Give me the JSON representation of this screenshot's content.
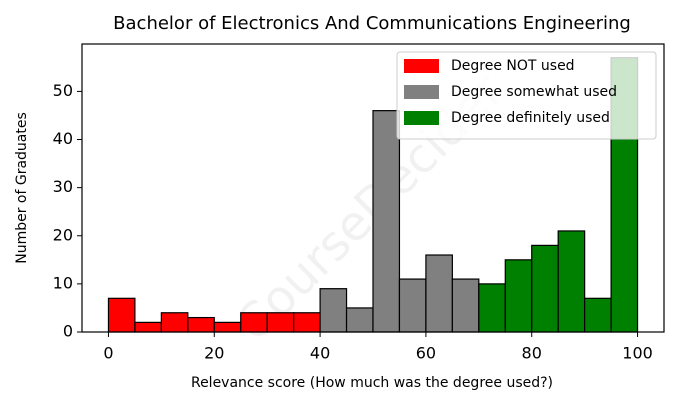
{
  "chart_data": {
    "type": "histogram",
    "title": "Bachelor of Electronics And Communications Engineering",
    "xlabel": "Relevance score (How much was the degree used?)",
    "ylabel": "Number of Graduates",
    "watermark": "CourseDecider",
    "xlim": [
      -5,
      105
    ],
    "ylim": [
      0,
      59.85
    ],
    "xticks": [
      0,
      20,
      40,
      60,
      80,
      100
    ],
    "yticks": [
      0,
      10,
      20,
      30,
      40,
      50
    ],
    "legend": "upper right",
    "series": [
      {
        "name": "Degree NOT used",
        "color": "#ff0000",
        "bins": [
          0,
          5,
          10,
          15,
          20,
          25,
          30,
          35,
          40
        ],
        "values": [
          7,
          2,
          4,
          3,
          2,
          4,
          4,
          4
        ]
      },
      {
        "name": "Degree somewhat used",
        "color": "#808080",
        "bins": [
          40,
          45,
          50,
          55,
          60,
          65,
          70
        ],
        "values": [
          9,
          5,
          46,
          11,
          16,
          11
        ]
      },
      {
        "name": "Degree definitely used",
        "color": "#008000",
        "bins": [
          70,
          75,
          80,
          85,
          90,
          95,
          100
        ],
        "values": [
          10,
          15,
          18,
          21,
          7,
          57
        ]
      }
    ]
  }
}
